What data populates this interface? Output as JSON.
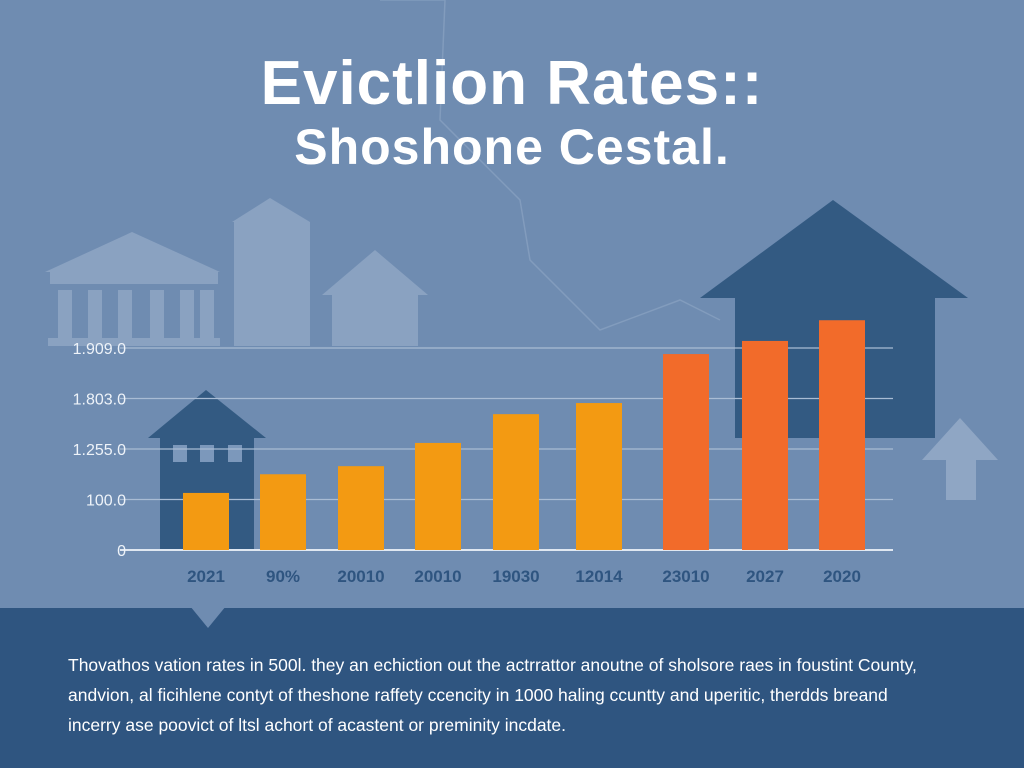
{
  "chart_data": {
    "type": "bar",
    "title": "Evictlion Rates::",
    "subtitle": "Shoshone Cestal.",
    "categories": [
      "2021",
      "90%",
      "20010",
      "20010",
      "19030",
      "12014",
      "23010",
      "2027",
      "2020"
    ],
    "values": [
      1.13,
      1.5,
      1.66,
      2.12,
      2.69,
      2.91,
      3.88,
      4.14,
      4.55
    ],
    "value_units": "gridline index (tick labels are non-linear as printed)",
    "yticks": [
      "0",
      "100.0",
      "1.255.0",
      "1.803.0",
      "1.909.0"
    ],
    "ylim": [
      0,
      4.6
    ],
    "grid": true,
    "xlabel": "",
    "ylabel": "",
    "colors": [
      "#f39a12",
      "#f39a12",
      "#f39a12",
      "#f39a12",
      "#f39a12",
      "#f39a12",
      "#f26b2a",
      "#f26b2a",
      "#f26b2a"
    ]
  },
  "description": [
    "Thovathos vation rates in 500l. they an echiction out the actrrattor anoutne of sholsore raes in foustint County,",
    "andvion, al ficihlene contyt of theshone raffety ccencity in 1000 haling ccuntty and uperitic, therdds breand",
    "incerry ase poovict of ltsl achort of acastent or preminity incdate."
  ],
  "colors": {
    "background": "#6f8cb1",
    "panel": "#2f5580",
    "house": "#335a82"
  }
}
